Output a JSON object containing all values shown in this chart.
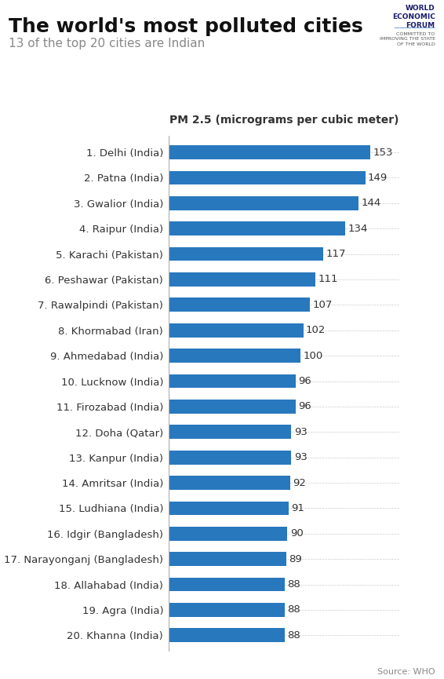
{
  "title": "The world's most polluted cities",
  "subtitle": "13 of the top 20 cities are Indian",
  "xlabel": "PM 2.5 (micrograms per cubic meter)",
  "source": "Source: WHO",
  "bar_color": "#2878be",
  "background_color": "#ffffff",
  "categories": [
    "1. Delhi (India)",
    "2. Patna (India)",
    "3. Gwalior (India)",
    "4. Raipur (India)",
    "5. Karachi (Pakistan)",
    "6. Peshawar (Pakistan)",
    "7. Rawalpindi (Pakistan)",
    "8. Khormabad (Iran)",
    "9. Ahmedabad (India)",
    "10. Lucknow (India)",
    "11. Firozabad (India)",
    "12. Doha (Qatar)",
    "13. Kanpur (India)",
    "14. Amritsar (India)",
    "15. Ludhiana (India)",
    "16. Idgir (Bangladesh)",
    "17. Narayonganj (Bangladesh)",
    "18. Allahabad (India)",
    "19. Agra (India)",
    "20. Khanna (India)"
  ],
  "values": [
    153,
    149,
    144,
    134,
    117,
    111,
    107,
    102,
    100,
    96,
    96,
    93,
    93,
    92,
    91,
    90,
    89,
    88,
    88,
    88
  ],
  "xlim": [
    0,
    175
  ],
  "title_fontsize": 18,
  "subtitle_fontsize": 11,
  "xlabel_fontsize": 10,
  "bar_label_fontsize": 9.5,
  "category_fontsize": 9.5,
  "wef_fontsize": 6.5,
  "source_fontsize": 8
}
